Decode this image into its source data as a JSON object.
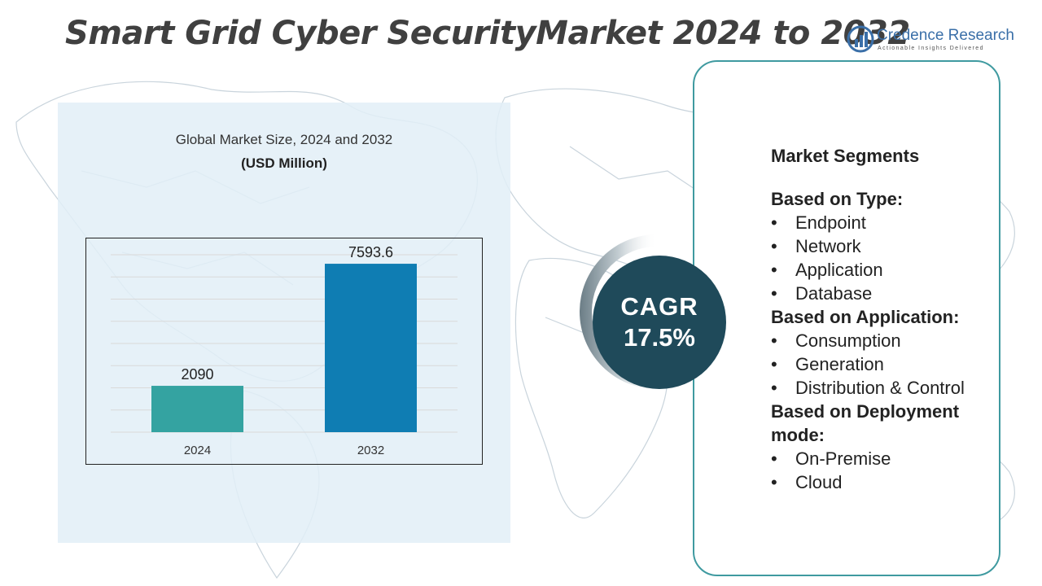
{
  "header": {
    "title": "Smart Grid Cyber SecurityMarket 2024 to 2032",
    "logo_name": "Credence Research",
    "logo_tagline": "Actionable Insights Delivered"
  },
  "chart_data": {
    "type": "bar",
    "title": "Global Market Size,  2024 and 2032",
    "subtitle": "(USD Million)",
    "categories": [
      "2024",
      "2032"
    ],
    "values": [
      2090,
      7593.6
    ],
    "value_labels": [
      "2090",
      "7593.6"
    ],
    "colors": [
      "#34a3a1",
      "#0f7db3"
    ],
    "ylim": [
      0,
      8000
    ],
    "grid": true,
    "xlabel": "",
    "ylabel": ""
  },
  "cagr": {
    "label": "CAGR",
    "value": "17.5%"
  },
  "segments": {
    "heading": "Market Segments",
    "groups": [
      {
        "title": "Based on Type:",
        "items": [
          "Endpoint",
          "Network",
          "Application",
          "Database"
        ]
      },
      {
        "title": "Based on Application:",
        "items": [
          "Consumption",
          "Generation",
          "Distribution & Control"
        ]
      },
      {
        "title": "Based on Deployment mode:",
        "items": [
          "On-Premise",
          "Cloud"
        ]
      }
    ]
  },
  "colors": {
    "title": "#404040",
    "panel_bg": "#e2eef7",
    "card_border": "#3f9aa0",
    "cagr_circle": "#1f4a5a",
    "logo": "#3a6fa8"
  }
}
